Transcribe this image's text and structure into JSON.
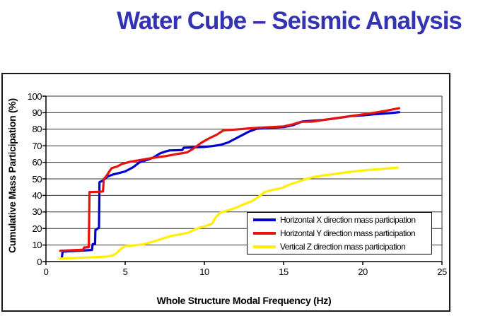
{
  "chart_data": {
    "type": "line",
    "title": "Water Cube – Seismic Analysis",
    "title_color": "#3434B2",
    "xlabel": "Whole Structure Modal Frequency (Hz)",
    "ylabel": "Cumulative Mass Participation (%)",
    "xlim": [
      0,
      25
    ],
    "ylim": [
      0,
      100
    ],
    "xticks": [
      0,
      5,
      10,
      15,
      20,
      25
    ],
    "yticks": [
      0,
      10,
      20,
      30,
      40,
      50,
      60,
      70,
      80,
      90,
      100
    ],
    "grid": "horizontal",
    "legend_position": "inside-bottom-right",
    "plot_border_color": "#333333",
    "axis_color": "#000000",
    "series": [
      {
        "name": "Horizontal X direction mass participation",
        "color": "#0000D0",
        "points": [
          [
            1.0,
            2
          ],
          [
            1.05,
            6
          ],
          [
            1.5,
            6.3
          ],
          [
            2.0,
            6.5
          ],
          [
            2.5,
            6.8
          ],
          [
            2.9,
            7
          ],
          [
            2.95,
            10.5
          ],
          [
            3.1,
            10.7
          ],
          [
            3.12,
            19
          ],
          [
            3.35,
            20.5
          ],
          [
            3.38,
            48
          ],
          [
            3.6,
            49
          ],
          [
            3.9,
            51.5
          ],
          [
            4.2,
            52.5
          ],
          [
            4.6,
            53.5
          ],
          [
            5.0,
            54.5
          ],
          [
            5.5,
            57
          ],
          [
            5.9,
            60
          ],
          [
            6.4,
            61.5
          ],
          [
            6.8,
            63
          ],
          [
            7.2,
            65.4
          ],
          [
            7.5,
            66.4
          ],
          [
            7.8,
            67.2
          ],
          [
            8.6,
            67.4
          ],
          [
            8.7,
            68.8
          ],
          [
            9.5,
            69.1
          ],
          [
            10.0,
            69.3
          ],
          [
            10.5,
            69.8
          ],
          [
            11.0,
            70.5
          ],
          [
            11.5,
            72
          ],
          [
            12.2,
            75.5
          ],
          [
            12.8,
            78.5
          ],
          [
            13.3,
            80.3
          ],
          [
            14.0,
            80.8
          ],
          [
            15.0,
            81.3
          ],
          [
            15.6,
            82.5
          ],
          [
            16.2,
            84.7
          ],
          [
            16.8,
            85.1
          ],
          [
            17.5,
            85.6
          ],
          [
            18.0,
            86.2
          ],
          [
            18.6,
            87
          ],
          [
            19.3,
            88
          ],
          [
            20.0,
            88.4
          ],
          [
            20.7,
            89
          ],
          [
            21.3,
            89.4
          ],
          [
            21.9,
            89.9
          ],
          [
            22.3,
            90.3
          ]
        ]
      },
      {
        "name": "Horizontal Y direction mass participation",
        "color": "#E8120C",
        "points": [
          [
            0.9,
            6.5
          ],
          [
            1.5,
            6.8
          ],
          [
            2.0,
            7
          ],
          [
            2.35,
            7.2
          ],
          [
            2.4,
            8.5
          ],
          [
            2.7,
            8.7
          ],
          [
            2.75,
            42
          ],
          [
            3.3,
            42.2
          ],
          [
            3.6,
            42.4
          ],
          [
            3.65,
            50
          ],
          [
            3.8,
            51.5
          ],
          [
            4.0,
            54.5
          ],
          [
            4.15,
            56.5
          ],
          [
            4.5,
            57.5
          ],
          [
            4.8,
            59
          ],
          [
            5.3,
            60.3
          ],
          [
            5.9,
            61.3
          ],
          [
            6.5,
            62.3
          ],
          [
            7.0,
            63
          ],
          [
            7.6,
            63.8
          ],
          [
            8.1,
            64.7
          ],
          [
            8.9,
            66
          ],
          [
            9.3,
            68.2
          ],
          [
            9.8,
            71.8
          ],
          [
            10.3,
            74.5
          ],
          [
            10.8,
            76.8
          ],
          [
            11.2,
            79.3
          ],
          [
            11.7,
            79.6
          ],
          [
            12.2,
            80
          ],
          [
            12.7,
            80.4
          ],
          [
            13.4,
            80.9
          ],
          [
            14.2,
            81.3
          ],
          [
            15.0,
            81.7
          ],
          [
            15.6,
            83
          ],
          [
            16.1,
            84.5
          ],
          [
            16.8,
            84.6
          ],
          [
            17.4,
            85.4
          ],
          [
            18.0,
            86.3
          ],
          [
            18.6,
            87.1
          ],
          [
            19.2,
            87.9
          ],
          [
            19.8,
            88.7
          ],
          [
            20.4,
            89.5
          ],
          [
            21.0,
            90.4
          ],
          [
            21.5,
            91.2
          ],
          [
            22.0,
            92.2
          ],
          [
            22.3,
            92.7
          ]
        ]
      },
      {
        "name": "Vertical Z direction mass participation",
        "color": "#FFF000",
        "points": [
          [
            0.85,
            1.8
          ],
          [
            1.5,
            2
          ],
          [
            2.2,
            2.3
          ],
          [
            3.0,
            2.6
          ],
          [
            3.8,
            3
          ],
          [
            4.2,
            3.6
          ],
          [
            4.45,
            5
          ],
          [
            4.7,
            7.5
          ],
          [
            5.0,
            9.3
          ],
          [
            5.6,
            9.8
          ],
          [
            6.2,
            10.5
          ],
          [
            6.9,
            12.5
          ],
          [
            7.4,
            14
          ],
          [
            7.9,
            15.5
          ],
          [
            8.5,
            16.5
          ],
          [
            9.0,
            17.5
          ],
          [
            9.3,
            19
          ],
          [
            9.7,
            20.5
          ],
          [
            10.1,
            21.5
          ],
          [
            10.5,
            23
          ],
          [
            10.65,
            26
          ],
          [
            11.0,
            29.5
          ],
          [
            11.5,
            31
          ],
          [
            12.0,
            32.5
          ],
          [
            12.4,
            34.3
          ],
          [
            13.0,
            36.5
          ],
          [
            13.4,
            39
          ],
          [
            13.8,
            42
          ],
          [
            14.4,
            43.5
          ],
          [
            14.9,
            44.5
          ],
          [
            15.2,
            45.8
          ],
          [
            15.45,
            46.8
          ],
          [
            16.0,
            48.5
          ],
          [
            16.6,
            50.5
          ],
          [
            17.0,
            51.3
          ],
          [
            17.6,
            52.2
          ],
          [
            18.3,
            53
          ],
          [
            19.0,
            54
          ],
          [
            19.7,
            54.8
          ],
          [
            20.4,
            55.4
          ],
          [
            21.1,
            55.9
          ],
          [
            21.7,
            56.4
          ],
          [
            22.2,
            56.8
          ]
        ]
      }
    ]
  }
}
